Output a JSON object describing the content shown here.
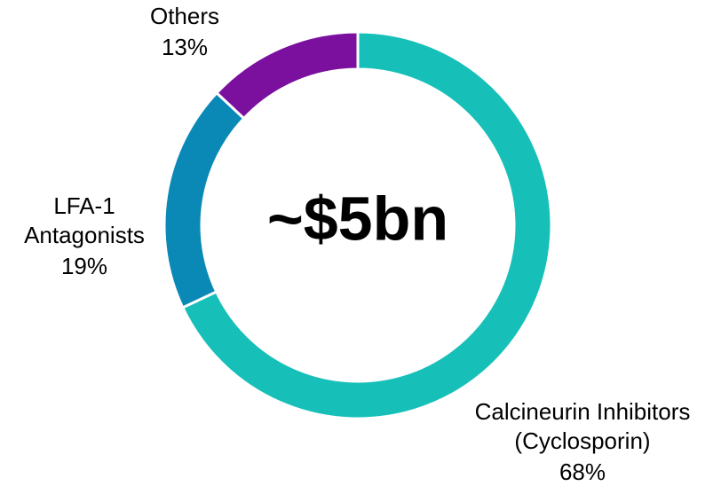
{
  "chart_data": {
    "type": "donut",
    "center_label": "~$5bn",
    "categories": [
      [
        "Calcineurin Inhibitors",
        "(Cyclosporin)"
      ],
      [
        "LFA-1",
        "Antagonists"
      ],
      [
        "Others"
      ]
    ],
    "values": [
      68,
      19,
      13
    ],
    "value_labels": [
      "68%",
      "19%",
      "13%"
    ],
    "colors": [
      "#16c0b9",
      "#0b89b6",
      "#7b0f9e"
    ]
  }
}
